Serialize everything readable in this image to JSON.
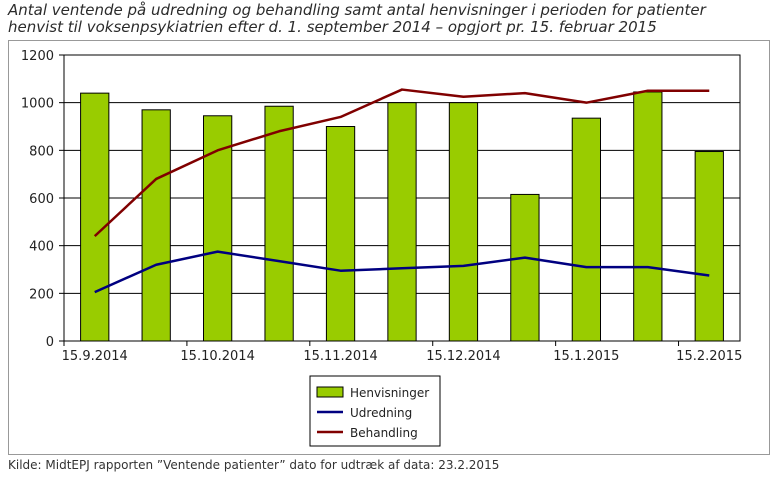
{
  "title_lines": [
    "Antal ventende på udredning og behandling samt antal henvisninger i perioden for patienter",
    "henvist til voksenpsykiatrien efter d. 1. september 2014 – opgjort pr. 15. februar 2015"
  ],
  "source": "Kilde: MidtEPJ rapporten ”Ventende patienter” dato for udtræk af data: 23.2.2015",
  "colors": {
    "bars": "#99CC00",
    "udredning": "#000080",
    "behandling": "#800000",
    "grid": "#000000"
  },
  "chart_data": {
    "type": "bar",
    "ylim": [
      0,
      1200
    ],
    "yticks": [
      "0",
      "200",
      "400",
      "600",
      "800",
      "1000",
      "1200"
    ],
    "xticks": [
      "15.9.2014",
      "15.10.2014",
      "15.11.2014",
      "15.12.2014",
      "15.1.2015",
      "15.2.2015"
    ],
    "grid": true,
    "legend_position": "bottom-center",
    "categories": [
      "15.9.2014",
      "",
      "15.10.2014",
      "",
      "15.11.2014",
      "",
      "15.12.2014",
      "",
      "15.1.2015",
      "",
      "15.2.2015"
    ],
    "series": [
      {
        "name": "Henvisninger",
        "kind": "bar",
        "values": [
          1040,
          970,
          945,
          985,
          900,
          1000,
          1000,
          615,
          935,
          1045,
          795
        ]
      },
      {
        "name": "Udredning",
        "kind": "line",
        "values": [
          205,
          320,
          375,
          335,
          295,
          305,
          315,
          350,
          310,
          310,
          275
        ]
      },
      {
        "name": "Behandling",
        "kind": "line",
        "values": [
          440,
          680,
          800,
          880,
          940,
          1055,
          1025,
          1040,
          1000,
          1050,
          1050
        ]
      }
    ]
  }
}
